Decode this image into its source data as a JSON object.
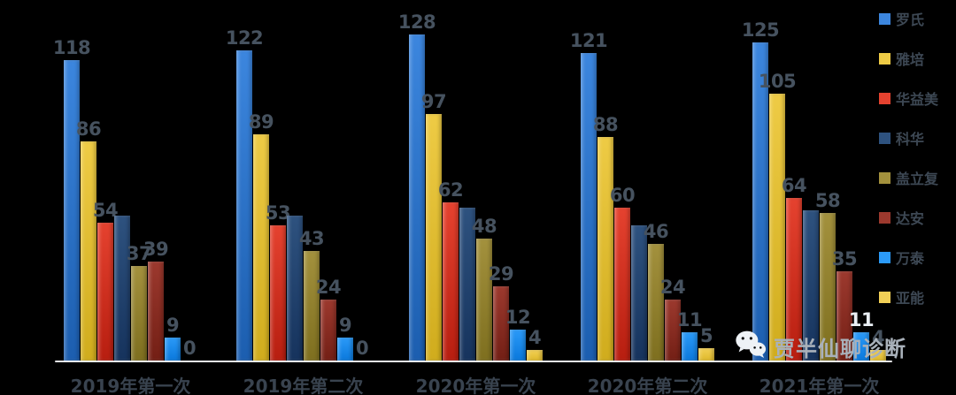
{
  "watermark": {
    "text": "贾半仙聊诊断"
  },
  "axis": {
    "color": "#E8EBEE"
  },
  "chart_data": {
    "type": "bar",
    "title": "",
    "xlabel": "",
    "ylabel": "",
    "categories": [
      "2019年第一次",
      "2019年第二次",
      "2020年第一次",
      "2020年第二次",
      "2021年第一次"
    ],
    "series": [
      {
        "name": "罗氏",
        "values": [
          118,
          122,
          128,
          121,
          125
        ],
        "color_top": "#3C86DE",
        "color_bottom": "#1C5EAF",
        "labels_visible": true
      },
      {
        "name": "雅培",
        "values": [
          86,
          89,
          97,
          88,
          105
        ],
        "color_top": "#EECB45",
        "color_bottom": "#D0AC1D",
        "labels_visible": true
      },
      {
        "name": "华益美",
        "values": [
          54,
          53,
          62,
          60,
          64
        ],
        "color_top": "#E5422F",
        "color_bottom": "#B71E10",
        "labels_visible": true
      },
      {
        "name": "科华",
        "values": [
          57,
          57,
          60,
          53,
          59
        ],
        "color_top": "#2E527F",
        "color_bottom": "#16335D",
        "labels_visible": false
      },
      {
        "name": "盖立复",
        "values": [
          37,
          43,
          48,
          46,
          58
        ],
        "color_top": "#A3913D",
        "color_bottom": "#7E6F1F",
        "labels_visible": true
      },
      {
        "name": "达安",
        "values": [
          39,
          24,
          29,
          24,
          35
        ],
        "color_top": "#9C392E",
        "color_bottom": "#731F15",
        "labels_visible": true
      },
      {
        "name": "万泰",
        "values": [
          9,
          9,
          12,
          11,
          11
        ],
        "color_top": "#2B9AF8",
        "color_bottom": "#0A78DC",
        "labels_visible": true
      },
      {
        "name": "亚能",
        "values": [
          0,
          0,
          4,
          5,
          4
        ],
        "color_top": "#F2D056",
        "color_bottom": "#DFB92A",
        "labels_visible": true
      }
    ],
    "ylim": [
      0,
      135
    ],
    "grid": false,
    "y_axis_shown": false,
    "legend_position": "right",
    "label_color": "#46525F",
    "label_overrides": [
      {
        "series": 6,
        "group": 4,
        "color": "#E9EEF3"
      }
    ]
  }
}
